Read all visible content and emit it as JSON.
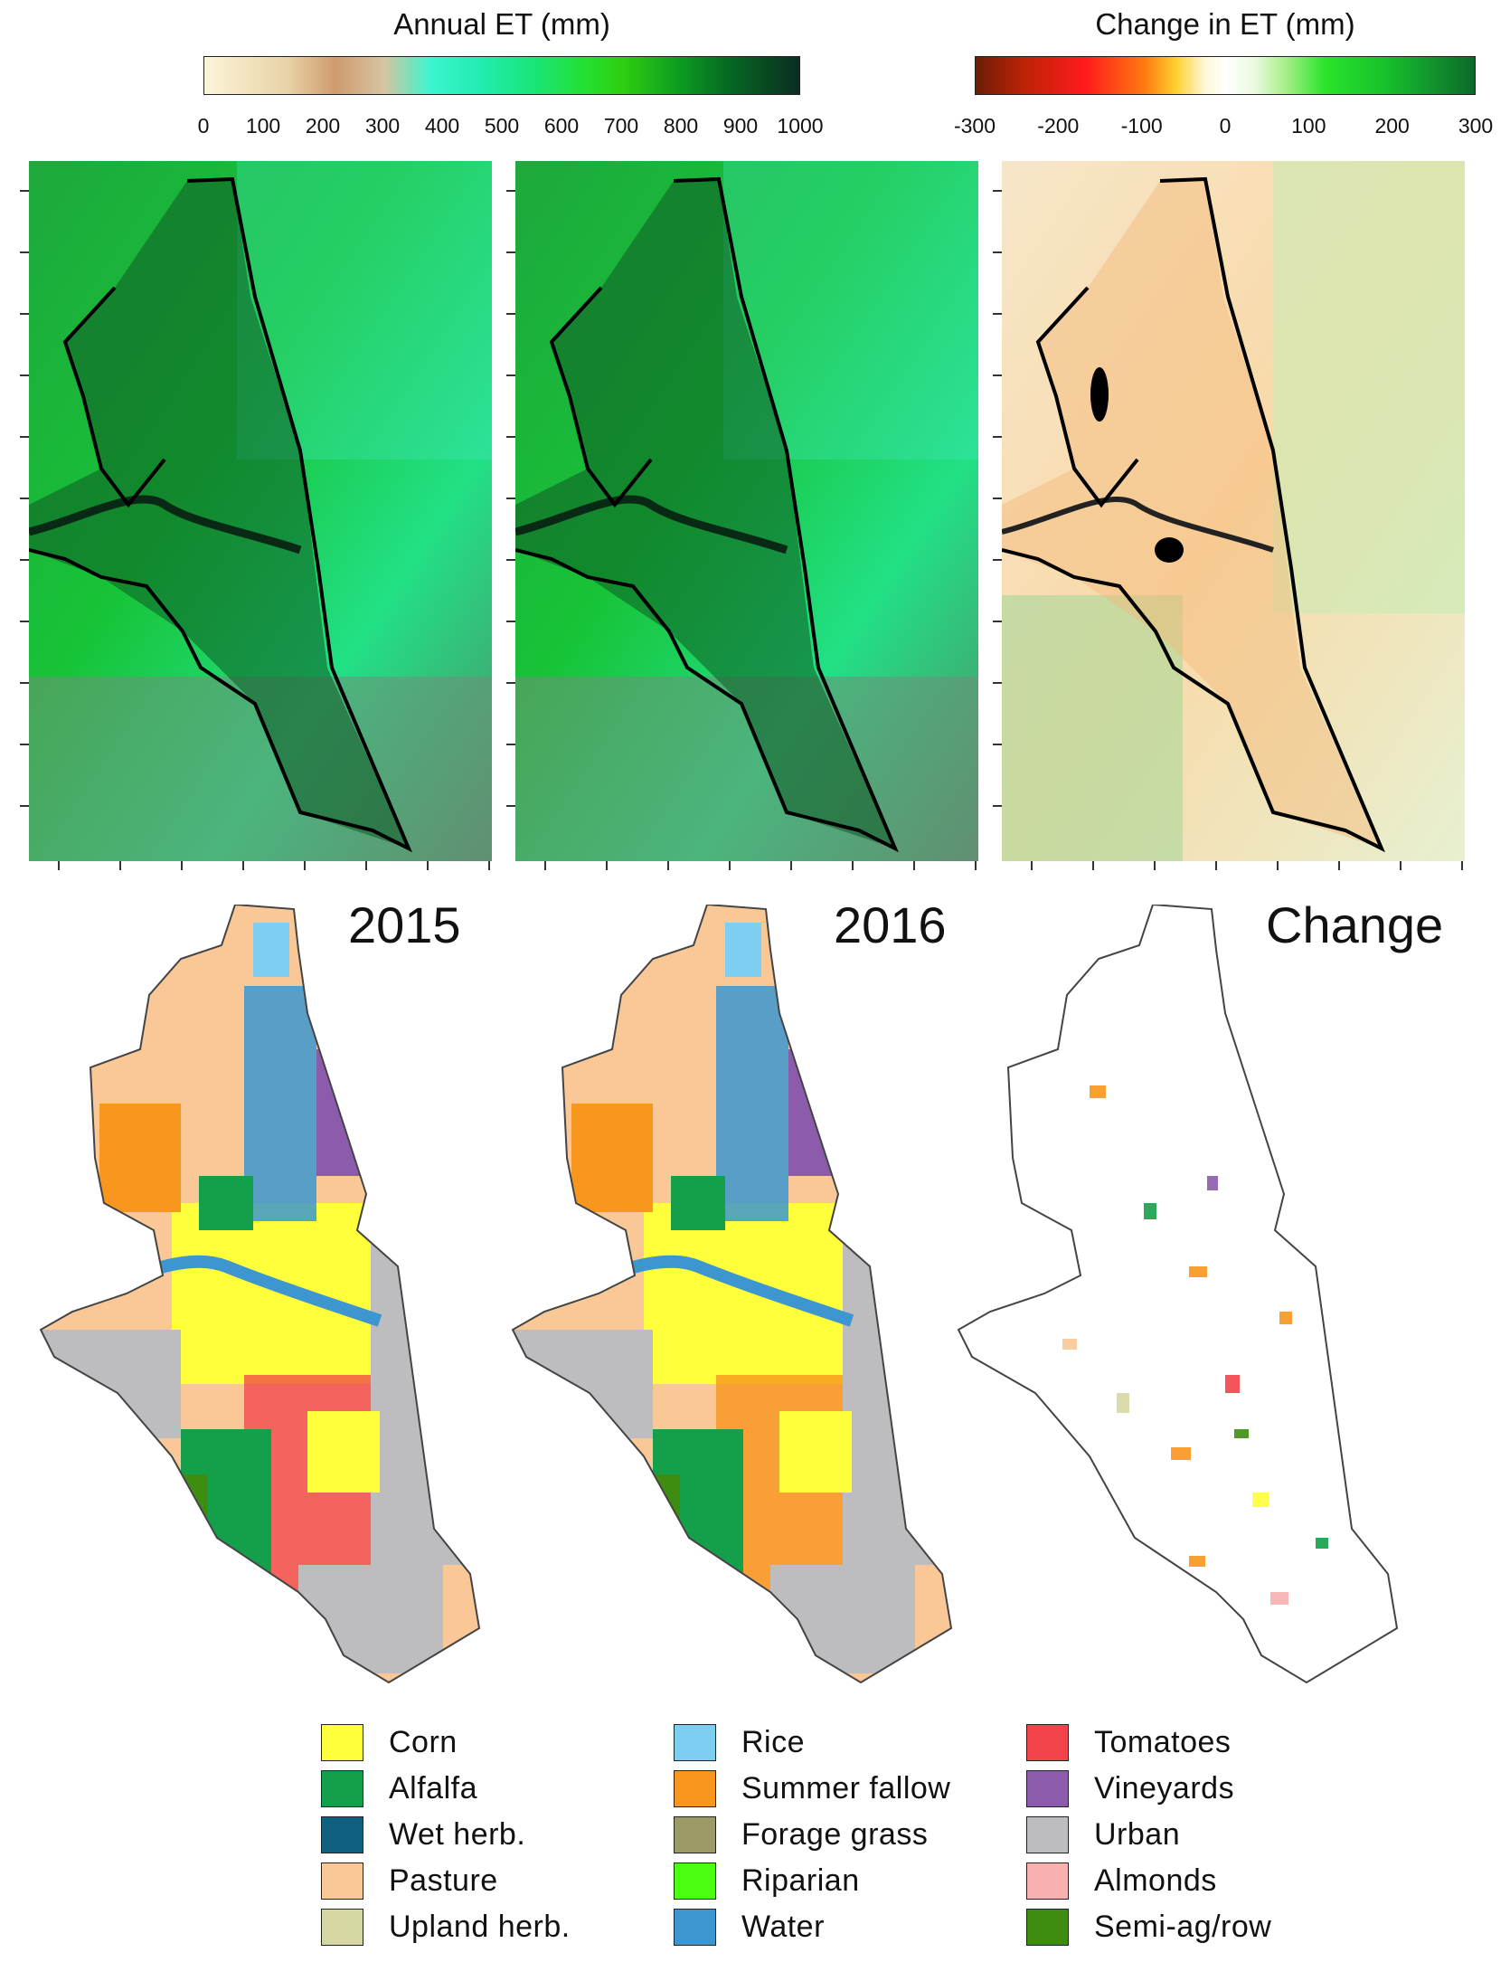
{
  "colorbars": {
    "annual": {
      "title": "Annual ET (mm)",
      "ticks": [
        "0",
        "100",
        "200",
        "300",
        "400",
        "500",
        "600",
        "700",
        "800",
        "900",
        "1000"
      ]
    },
    "change": {
      "title": "Change in ET (mm)",
      "ticks": [
        "-300",
        "-200",
        "-100",
        "0",
        "100",
        "200",
        "300"
      ]
    }
  },
  "panels": {
    "y2015": "2015",
    "y2016": "2016",
    "change": "Change"
  },
  "legend": [
    {
      "label": "Corn",
      "color": "#ffff3b"
    },
    {
      "label": "Alfalfa",
      "color": "#14a04a"
    },
    {
      "label": "Wet herb.",
      "color": "#0e5f80"
    },
    {
      "label": "Pasture",
      "color": "#f9c896"
    },
    {
      "label": "Upland herb.",
      "color": "#d6d8a4"
    },
    {
      "label": "Rice",
      "color": "#7ecef1"
    },
    {
      "label": "Summer  fallow",
      "color": "#f8961d"
    },
    {
      "label": "Forage grass",
      "color": "#9c9a66"
    },
    {
      "label": "Riparian",
      "color": "#4cff12"
    },
    {
      "label": "Water",
      "color": "#3d96d0"
    },
    {
      "label": "Tomatoes",
      "color": "#f2434a"
    },
    {
      "label": "Vineyards",
      "color": "#8c5bac"
    },
    {
      "label": "Urban",
      "color": "#bdbdbf"
    },
    {
      "label": "Almonds",
      "color": "#f8b1b0"
    },
    {
      "label": "Semi-ag/row",
      "color": "#3e8d11"
    }
  ]
}
